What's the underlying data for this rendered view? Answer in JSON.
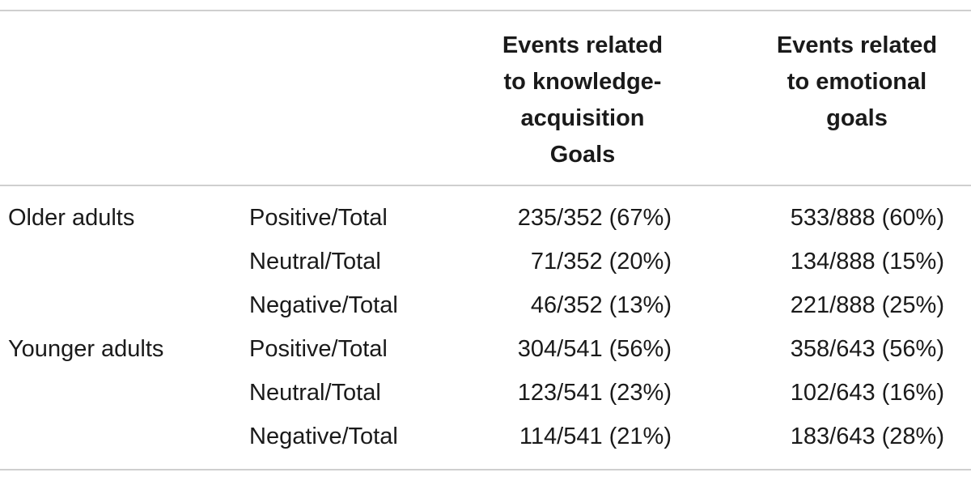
{
  "table": {
    "header": {
      "col1_lines": [
        "Events related",
        "to knowledge-",
        "acquisition",
        "Goals"
      ],
      "col2_lines": [
        "Events related",
        "to emotional",
        "goals"
      ]
    },
    "groups": [
      {
        "name": "Older adults",
        "rows": [
          {
            "label": "Positive/Total",
            "knowledge": "235/352 (67%)",
            "emotional": "533/888 (60%)"
          },
          {
            "label": "Neutral/Total",
            "knowledge": "71/352 (20%)",
            "emotional": "134/888 (15%)"
          },
          {
            "label": "Negative/Total",
            "knowledge": "46/352 (13%)",
            "emotional": "221/888 (25%)"
          }
        ]
      },
      {
        "name": "Younger adults",
        "rows": [
          {
            "label": "Positive/Total",
            "knowledge": "304/541 (56%)",
            "emotional": "358/643 (56%)"
          },
          {
            "label": "Neutral/Total",
            "knowledge": "123/541 (23%)",
            "emotional": "102/643 (16%)"
          },
          {
            "label": "Negative/Total",
            "knowledge": "114/541 (21%)",
            "emotional": "183/643 (28%)"
          }
        ]
      }
    ]
  }
}
